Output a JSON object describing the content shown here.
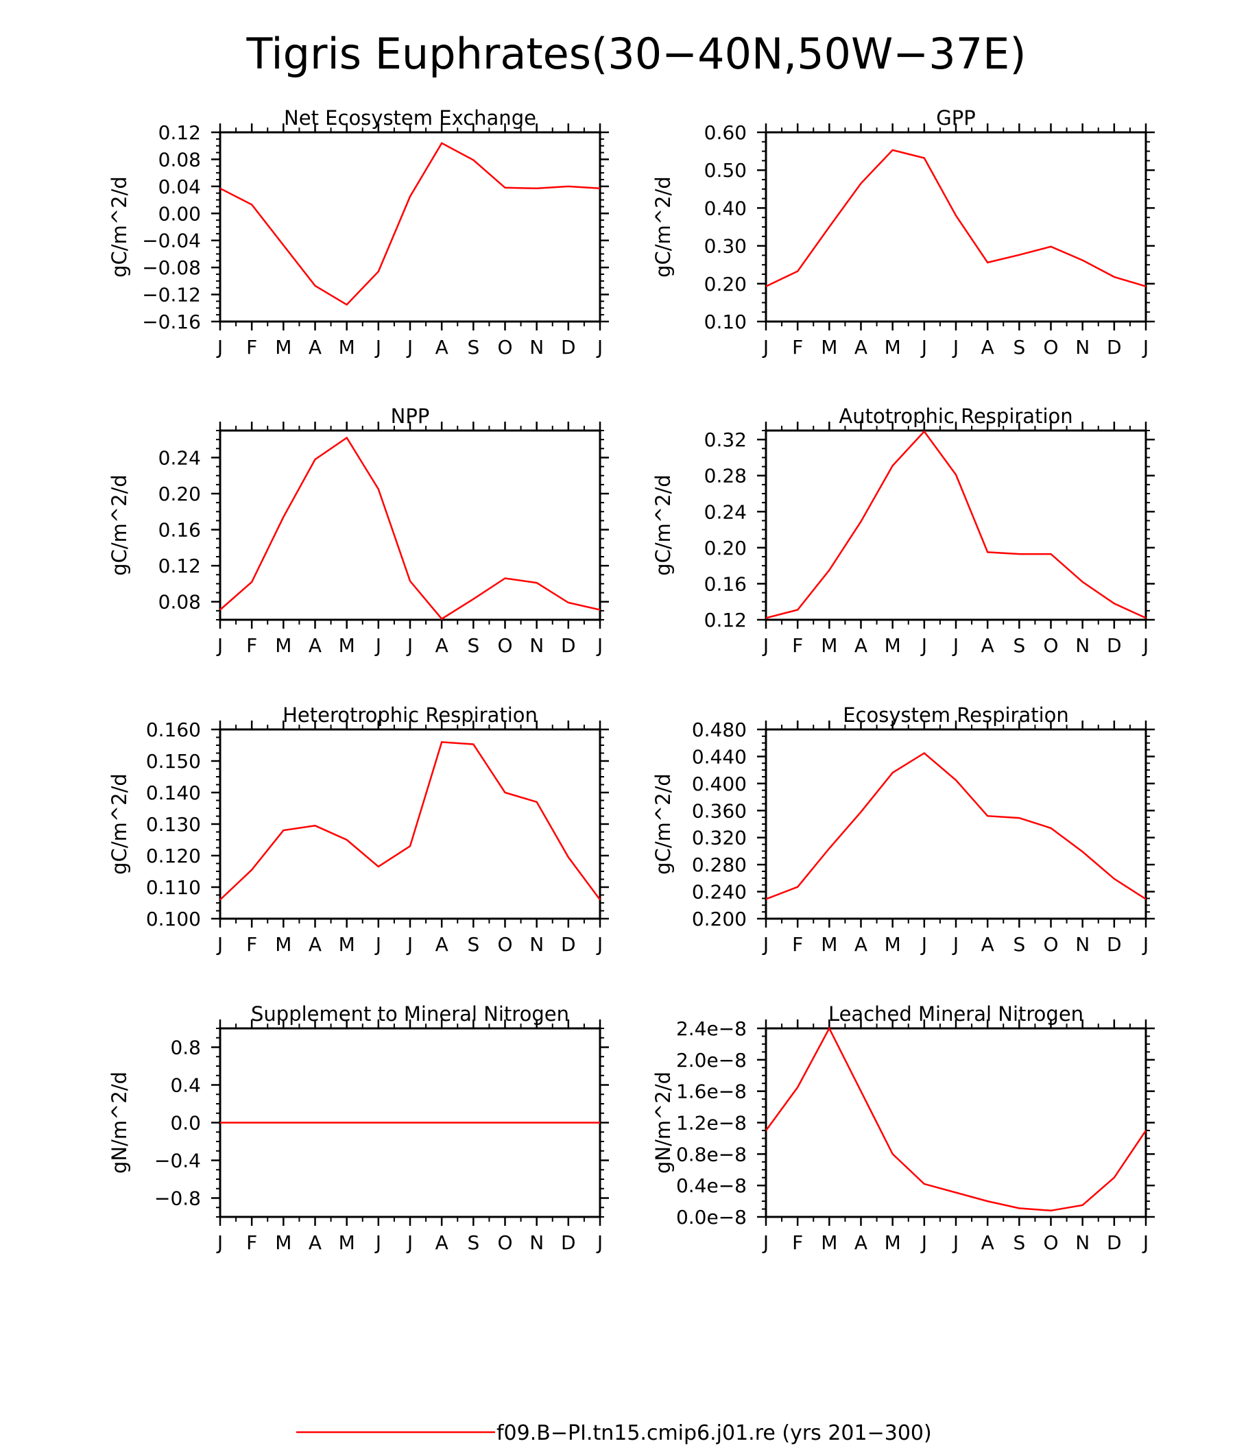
{
  "figure_title": "Tigris Euphrates(30−40N,50W−37E)",
  "legend": {
    "label": "f09.B−PI.tn15.cmip6.j01.re (yrs 201−300)",
    "color": "#ff0000"
  },
  "chart_data": [
    {
      "type": "line",
      "title": "Net Ecosystem Exchange",
      "ylabel": "gC/m^2/d",
      "categories": [
        "J",
        "F",
        "M",
        "A",
        "M",
        "J",
        "J",
        "A",
        "S",
        "O",
        "N",
        "D",
        "J"
      ],
      "ylim": [
        -0.16,
        0.12
      ],
      "yticks": [
        -0.16,
        -0.12,
        -0.08,
        -0.04,
        0.0,
        0.04,
        0.08,
        0.12
      ],
      "ytick_labels": [
        "−0.16",
        "−0.12",
        "−0.08",
        "−0.04",
        "0.00",
        "0.04",
        "0.08",
        "0.12"
      ],
      "series": [
        {
          "values": [
            0.037,
            0.013,
            -0.047,
            -0.107,
            -0.135,
            -0.086,
            0.025,
            0.104,
            0.079,
            0.038,
            0.037,
            0.04,
            0.037
          ]
        }
      ]
    },
    {
      "type": "line",
      "title": "GPP",
      "ylabel": "gC/m^2/d",
      "categories": [
        "J",
        "F",
        "M",
        "A",
        "M",
        "J",
        "J",
        "A",
        "S",
        "O",
        "N",
        "D",
        "J"
      ],
      "ylim": [
        0.1,
        0.6
      ],
      "yticks": [
        0.1,
        0.2,
        0.3,
        0.4,
        0.5,
        0.6
      ],
      "ytick_labels": [
        "0.10",
        "0.20",
        "0.30",
        "0.40",
        "0.50",
        "0.60"
      ],
      "series": [
        {
          "values": [
            0.193,
            0.233,
            0.35,
            0.465,
            0.553,
            0.532,
            0.38,
            0.256,
            0.276,
            0.298,
            0.262,
            0.218,
            0.193
          ]
        }
      ]
    },
    {
      "type": "line",
      "title": "NPP",
      "ylabel": "gC/m^2/d",
      "categories": [
        "J",
        "F",
        "M",
        "A",
        "M",
        "J",
        "J",
        "A",
        "S",
        "O",
        "N",
        "D",
        "J"
      ],
      "ylim": [
        0.06,
        0.27
      ],
      "yticks": [
        0.08,
        0.12,
        0.16,
        0.2,
        0.24
      ],
      "ytick_labels": [
        "0.08",
        "0.12",
        "0.16",
        "0.20",
        "0.24"
      ],
      "series": [
        {
          "values": [
            0.071,
            0.102,
            0.174,
            0.238,
            0.262,
            0.205,
            0.103,
            0.061,
            0.083,
            0.106,
            0.101,
            0.079,
            0.071
          ]
        }
      ]
    },
    {
      "type": "line",
      "title": "Autotrophic Respiration",
      "ylabel": "gC/m^2/d",
      "categories": [
        "J",
        "F",
        "M",
        "A",
        "M",
        "J",
        "J",
        "A",
        "S",
        "O",
        "N",
        "D",
        "J"
      ],
      "ylim": [
        0.12,
        0.33
      ],
      "yticks": [
        0.12,
        0.16,
        0.2,
        0.24,
        0.28,
        0.32
      ],
      "ytick_labels": [
        "0.12",
        "0.16",
        "0.20",
        "0.24",
        "0.28",
        "0.32"
      ],
      "series": [
        {
          "values": [
            0.122,
            0.131,
            0.175,
            0.229,
            0.291,
            0.329,
            0.281,
            0.195,
            0.193,
            0.193,
            0.162,
            0.138,
            0.122
          ]
        }
      ]
    },
    {
      "type": "line",
      "title": "Heterotrophic Respiration",
      "ylabel": "gC/m^2/d",
      "categories": [
        "J",
        "F",
        "M",
        "A",
        "M",
        "J",
        "J",
        "A",
        "S",
        "O",
        "N",
        "D",
        "J"
      ],
      "ylim": [
        0.1,
        0.16
      ],
      "yticks": [
        0.1,
        0.11,
        0.12,
        0.13,
        0.14,
        0.15,
        0.16
      ],
      "ytick_labels": [
        "0.100",
        "0.110",
        "0.120",
        "0.130",
        "0.140",
        "0.150",
        "0.160"
      ],
      "series": [
        {
          "values": [
            0.106,
            0.1155,
            0.128,
            0.1295,
            0.125,
            0.1165,
            0.123,
            0.156,
            0.1553,
            0.14,
            0.137,
            0.1195,
            0.106
          ]
        }
      ]
    },
    {
      "type": "line",
      "title": "Ecosystem Respiration",
      "ylabel": "gC/m^2/d",
      "categories": [
        "J",
        "F",
        "M",
        "A",
        "M",
        "J",
        "J",
        "A",
        "S",
        "O",
        "N",
        "D",
        "J"
      ],
      "ylim": [
        0.2,
        0.48
      ],
      "yticks": [
        0.2,
        0.24,
        0.28,
        0.32,
        0.36,
        0.4,
        0.44,
        0.48
      ],
      "ytick_labels": [
        "0.200",
        "0.240",
        "0.280",
        "0.320",
        "0.360",
        "0.400",
        "0.440",
        "0.480"
      ],
      "series": [
        {
          "values": [
            0.229,
            0.247,
            0.304,
            0.358,
            0.416,
            0.445,
            0.405,
            0.352,
            0.349,
            0.334,
            0.299,
            0.259,
            0.229
          ]
        }
      ]
    },
    {
      "type": "line",
      "title": "Supplement to Mineral Nitrogen",
      "ylabel": "gN/m^2/d",
      "categories": [
        "J",
        "F",
        "M",
        "A",
        "M",
        "J",
        "J",
        "A",
        "S",
        "O",
        "N",
        "D",
        "J"
      ],
      "ylim": [
        -1.0,
        1.0
      ],
      "yticks": [
        -0.8,
        -0.4,
        0.0,
        0.4,
        0.8
      ],
      "ytick_labels": [
        "−0.8",
        "−0.4",
        "0.0",
        "0.4",
        "0.8"
      ],
      "series": [
        {
          "values": [
            0,
            0,
            0,
            0,
            0,
            0,
            0,
            0,
            0,
            0,
            0,
            0,
            0
          ]
        }
      ]
    },
    {
      "type": "line",
      "title": "Leached Mineral Nitrogen",
      "ylabel": "gN/m^2/d",
      "categories": [
        "J",
        "F",
        "M",
        "A",
        "M",
        "J",
        "J",
        "A",
        "S",
        "O",
        "N",
        "D",
        "J"
      ],
      "ylim": [
        0.0,
        2.4e-08
      ],
      "yticks": [
        0.0,
        4e-09,
        8e-09,
        1.2e-08,
        1.6e-08,
        2e-08,
        2.4e-08
      ],
      "ytick_labels": [
        "0.0e−8",
        "0.4e−8",
        "0.8e−8",
        "1.2e−8",
        "1.6e−8",
        "2.0e−8",
        "2.4e−8"
      ],
      "series": [
        {
          "values": [
            1.1e-08,
            1.65e-08,
            2.4e-08,
            1.6e-08,
            8e-09,
            4.2e-09,
            3.1e-09,
            2e-09,
            1.1e-09,
            8e-10,
            1.5e-09,
            5e-09,
            1.1e-08
          ]
        }
      ]
    }
  ]
}
